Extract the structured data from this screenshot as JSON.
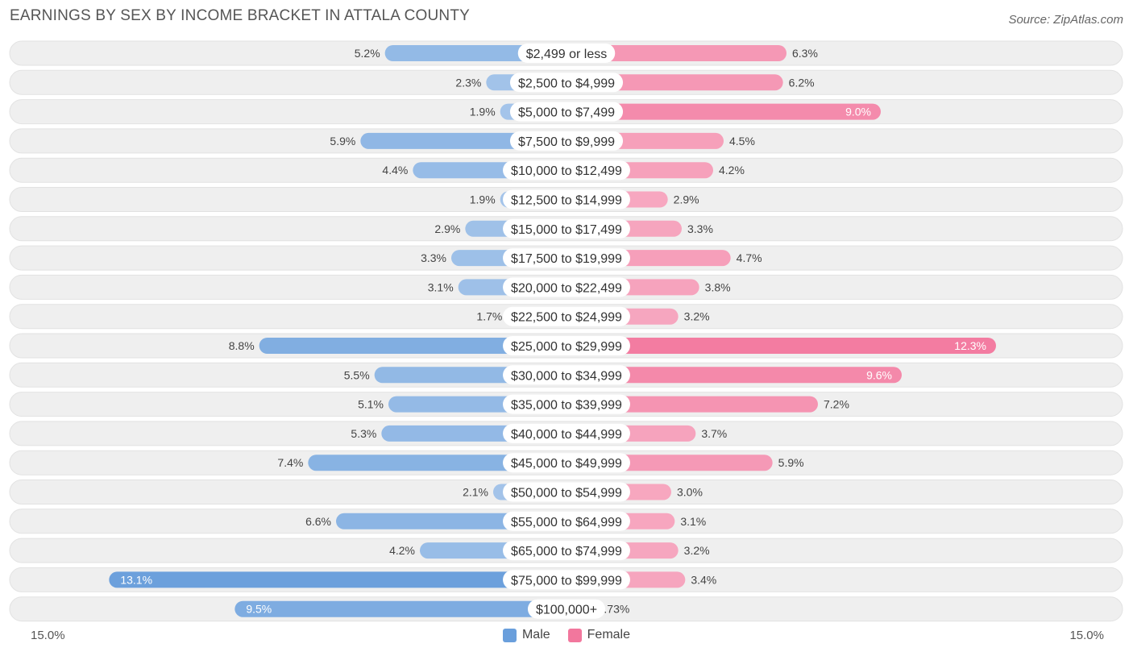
{
  "header": {
    "title": "EARNINGS BY SEX BY INCOME BRACKET IN ATTALA COUNTY",
    "source": "Source: ZipAtlas.com"
  },
  "colors": {
    "male": "#6a9fdc",
    "female": "#f2779d",
    "row_bg": "#efefef"
  },
  "axis": {
    "left_label": "15.0%",
    "right_label": "15.0%"
  },
  "legend": {
    "male_label": "Male",
    "female_label": "Female"
  },
  "chart_data": {
    "type": "bar",
    "orientation": "horizontal-diverging",
    "title": "EARNINGS BY SEX BY INCOME BRACKET IN ATTALA COUNTY",
    "xlim": [
      -15.0,
      15.0
    ],
    "categories": [
      "$2,499 or less",
      "$2,500 to $4,999",
      "$5,000 to $7,499",
      "$7,500 to $9,999",
      "$10,000 to $12,499",
      "$12,500 to $14,999",
      "$15,000 to $17,499",
      "$17,500 to $19,999",
      "$20,000 to $22,499",
      "$22,500 to $24,999",
      "$25,000 to $29,999",
      "$30,000 to $34,999",
      "$35,000 to $39,999",
      "$40,000 to $44,999",
      "$45,000 to $49,999",
      "$50,000 to $54,999",
      "$55,000 to $64,999",
      "$65,000 to $74,999",
      "$75,000 to $99,999",
      "$100,000+"
    ],
    "series": [
      {
        "name": "Male",
        "values": [
          5.2,
          2.3,
          1.9,
          5.9,
          4.4,
          1.9,
          2.9,
          3.3,
          3.1,
          1.7,
          8.8,
          5.5,
          5.1,
          5.3,
          7.4,
          2.1,
          6.6,
          4.2,
          13.1,
          9.5
        ],
        "labels": [
          "5.2%",
          "2.3%",
          "1.9%",
          "5.9%",
          "4.4%",
          "1.9%",
          "2.9%",
          "3.3%",
          "3.1%",
          "1.7%",
          "8.8%",
          "5.5%",
          "5.1%",
          "5.3%",
          "7.4%",
          "2.1%",
          "6.6%",
          "4.2%",
          "13.1%",
          "9.5%"
        ]
      },
      {
        "name": "Female",
        "values": [
          6.3,
          6.2,
          9.0,
          4.5,
          4.2,
          2.9,
          3.3,
          4.7,
          3.8,
          3.2,
          12.3,
          9.6,
          7.2,
          3.7,
          5.9,
          3.0,
          3.1,
          3.2,
          3.4,
          0.73
        ],
        "labels": [
          "6.3%",
          "6.2%",
          "9.0%",
          "4.5%",
          "4.2%",
          "2.9%",
          "3.3%",
          "4.7%",
          "3.8%",
          "3.2%",
          "12.3%",
          "9.6%",
          "7.2%",
          "3.7%",
          "5.9%",
          "3.0%",
          "3.1%",
          "3.2%",
          "3.4%",
          "0.73%"
        ]
      }
    ]
  }
}
